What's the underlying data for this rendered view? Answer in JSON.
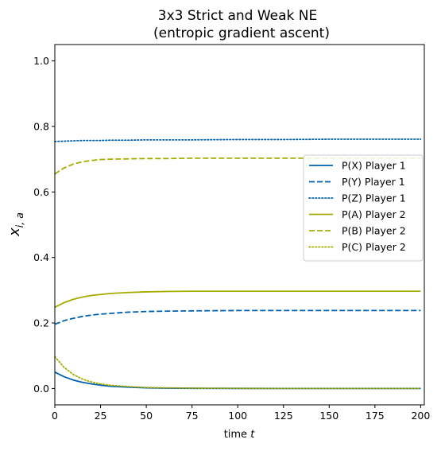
{
  "chart_data": {
    "type": "line",
    "title": "3x3 Strict and Weak NE",
    "subtitle": "(entropic gradient ascent)",
    "xlabel": "time ",
    "xlabel_var": "t",
    "ylabel_main": "x",
    "ylabel_sub": "i, a",
    "xlim": [
      0,
      202
    ],
    "ylim": [
      -0.05,
      1.05
    ],
    "xticks": [
      0,
      25,
      50,
      75,
      100,
      125,
      150,
      175,
      200
    ],
    "yticks": [
      0.0,
      0.2,
      0.4,
      0.6,
      0.8,
      1.0
    ],
    "grid": false,
    "legend_position": "center-right",
    "x": [
      0,
      5,
      10,
      15,
      20,
      25,
      30,
      40,
      50,
      60,
      75,
      100,
      125,
      150,
      175,
      200
    ],
    "series": [
      {
        "name": "P(X) Player 1",
        "color": "#0060B0",
        "dash": "solid",
        "values": [
          0.05,
          0.036,
          0.026,
          0.019,
          0.014,
          0.01,
          0.007,
          0.004,
          0.002,
          0.001,
          0.0005,
          0.0002,
          0.0001,
          0.0,
          0.0,
          0.0
        ]
      },
      {
        "name": "P(Y) Player 1",
        "color": "#0060B0",
        "dash": "dashed",
        "values": [
          0.196,
          0.207,
          0.214,
          0.22,
          0.224,
          0.227,
          0.229,
          0.233,
          0.235,
          0.236,
          0.237,
          0.238,
          0.238,
          0.238,
          0.238,
          0.238
        ]
      },
      {
        "name": "P(Z) Player 1",
        "color": "#0060B0",
        "dash": "dotted",
        "values": [
          0.754,
          0.755,
          0.756,
          0.757,
          0.757,
          0.757,
          0.758,
          0.758,
          0.759,
          0.759,
          0.759,
          0.76,
          0.76,
          0.761,
          0.761,
          0.761
        ]
      },
      {
        "name": "P(A) Player 2",
        "color": "#A5AC00",
        "dash": "solid",
        "values": [
          0.248,
          0.262,
          0.272,
          0.279,
          0.284,
          0.287,
          0.29,
          0.293,
          0.295,
          0.296,
          0.297,
          0.297,
          0.297,
          0.297,
          0.297,
          0.297
        ]
      },
      {
        "name": "P(B) Player 2",
        "color": "#A5AC00",
        "dash": "dashed",
        "values": [
          0.655,
          0.673,
          0.685,
          0.692,
          0.696,
          0.699,
          0.7,
          0.701,
          0.702,
          0.702,
          0.703,
          0.703,
          0.703,
          0.703,
          0.703,
          0.703
        ]
      },
      {
        "name": "P(C) Player 2",
        "color": "#A5AC00",
        "dash": "dotted",
        "values": [
          0.097,
          0.065,
          0.043,
          0.029,
          0.02,
          0.014,
          0.01,
          0.006,
          0.003,
          0.002,
          0.001,
          0.0003,
          0.0001,
          0.0,
          0.0,
          0.0
        ]
      }
    ]
  }
}
